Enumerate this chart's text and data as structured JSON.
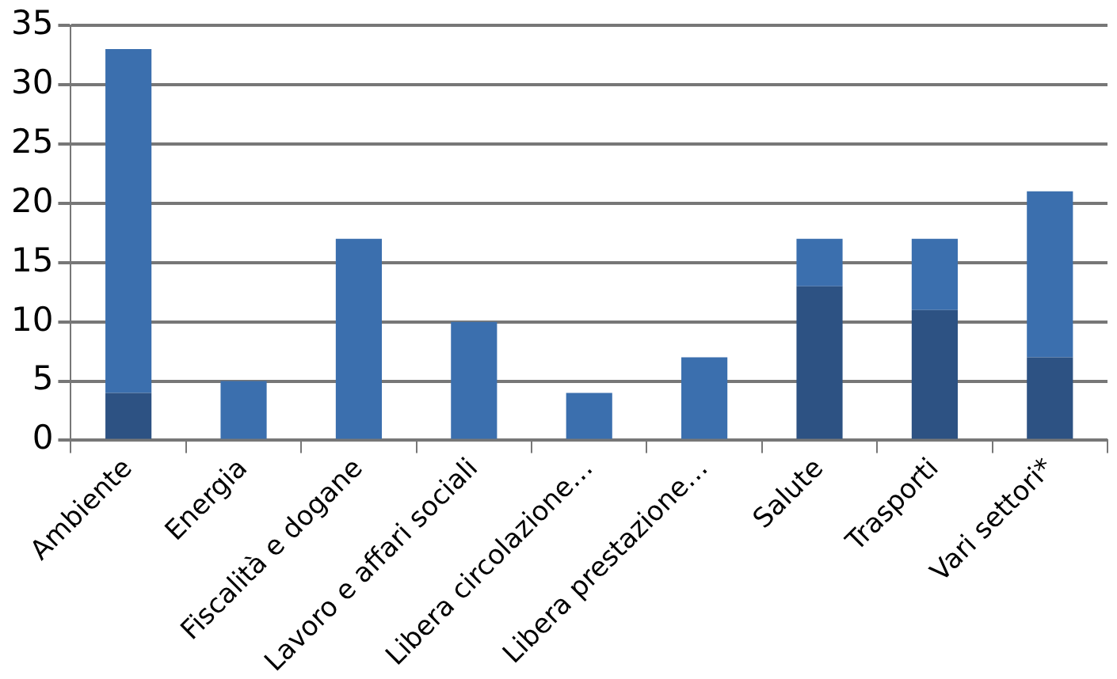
{
  "chart_data": {
    "type": "bar",
    "stacked": true,
    "categories": [
      "Ambiente",
      "Energia",
      "Fiscalità e dogane",
      "Lavoro e affari sociali",
      "Libera circolazione…",
      "Libera prestazione…",
      "Salute",
      "Trasporti",
      "Vari settori*"
    ],
    "series": [
      {
        "color": "#2d5283",
        "values": [
          4,
          0,
          0,
          0,
          0,
          0,
          13,
          11,
          7
        ]
      },
      {
        "color": "#3b6fae",
        "values": [
          29,
          5,
          17,
          10,
          4,
          7,
          4,
          6,
          14
        ]
      }
    ],
    "ylim": [
      0,
      35
    ],
    "yticks": [
      0,
      5,
      10,
      15,
      20,
      25,
      30,
      35
    ],
    "grid": "y",
    "legend": false
  }
}
